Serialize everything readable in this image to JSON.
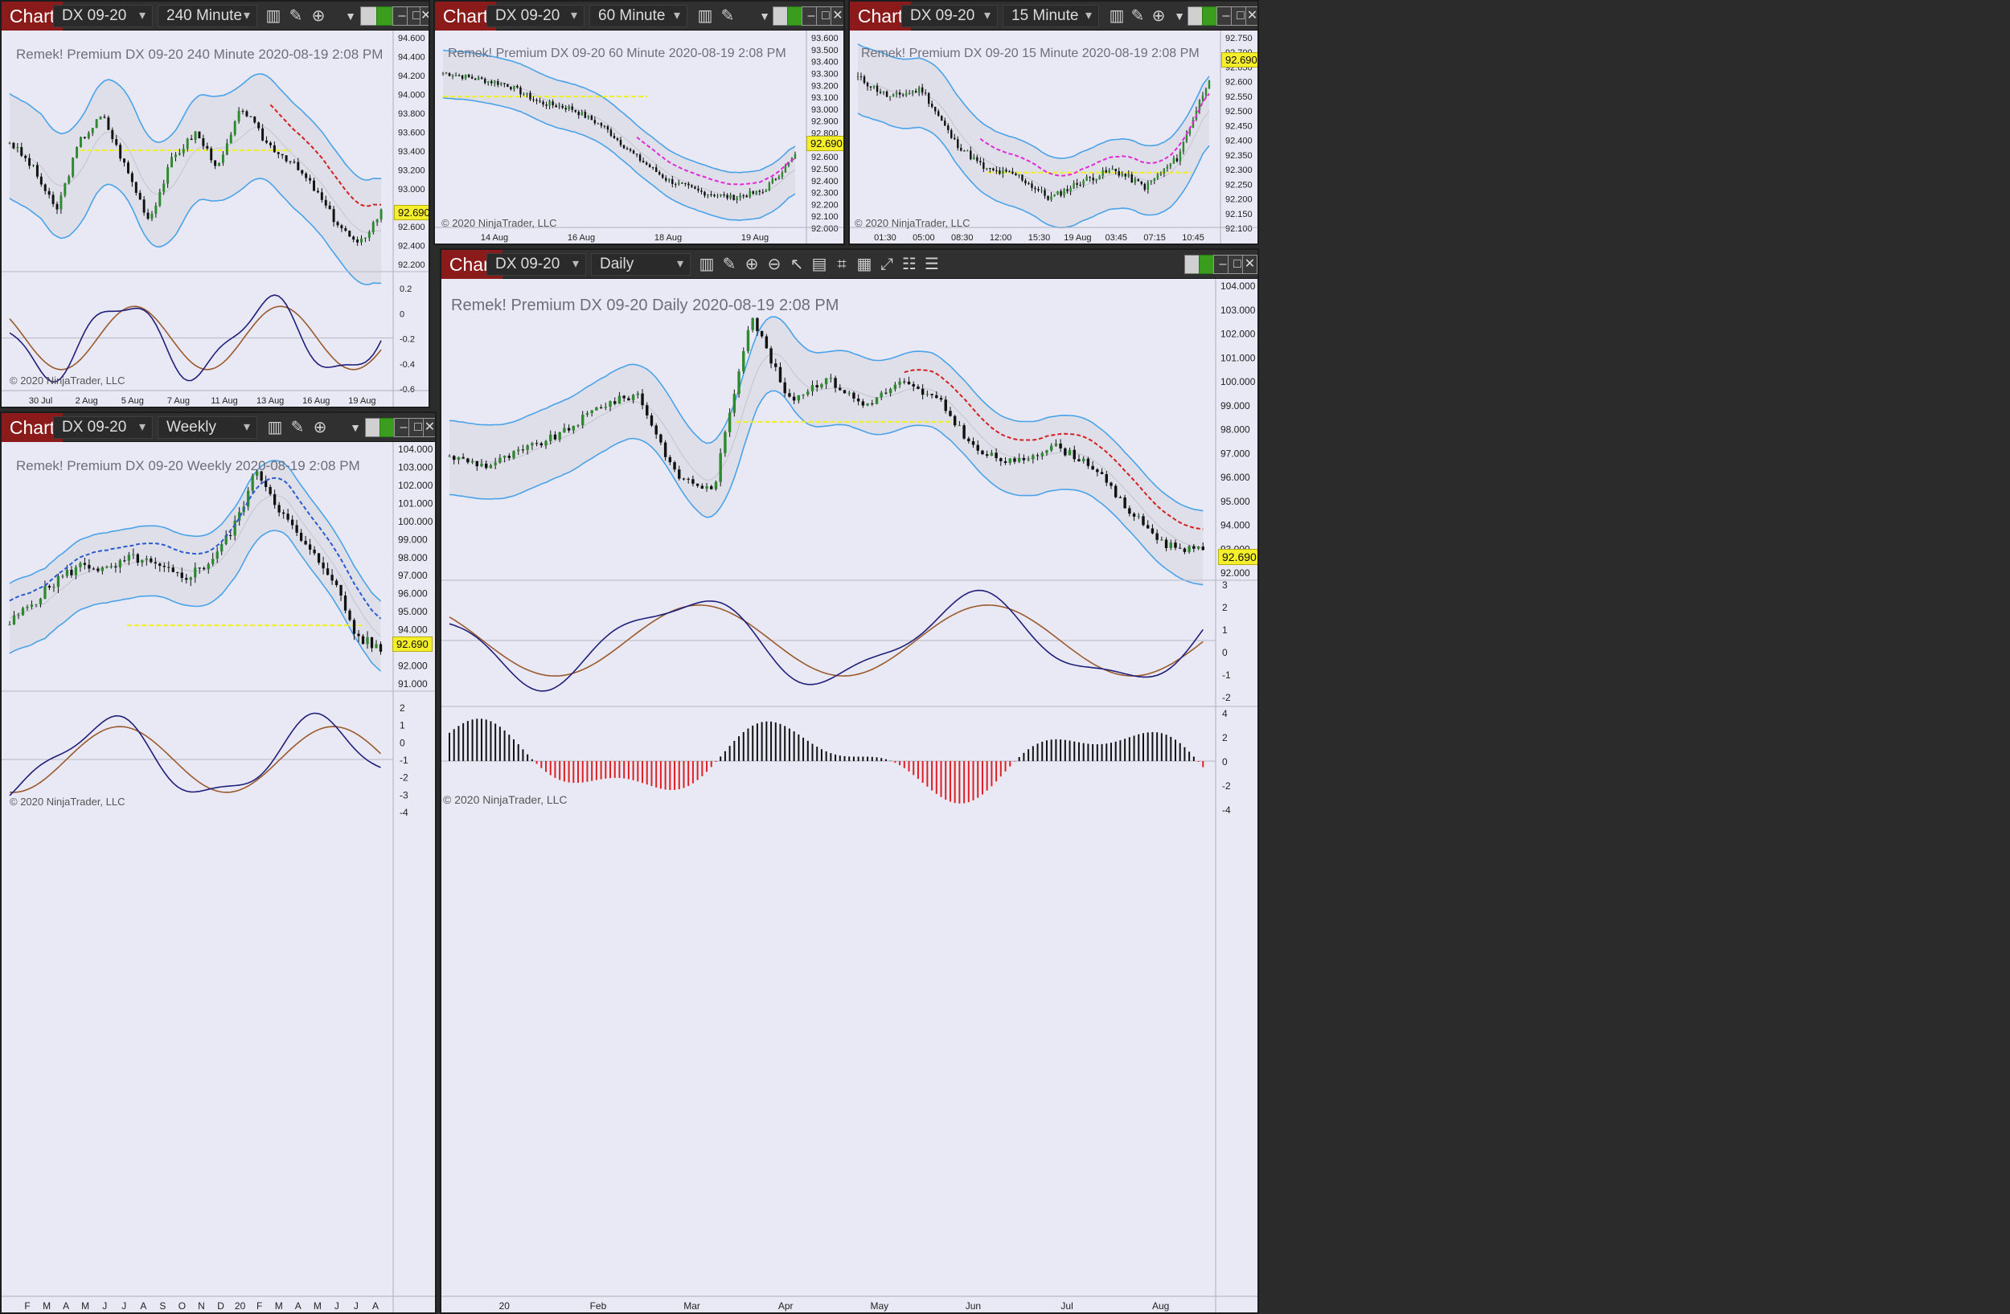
{
  "colors": {
    "chart_bg": "#e9e9f6",
    "toolbar": "#303030",
    "chart_button": "#8b1a1a",
    "band": "#4aa3e8",
    "bull": "#2e8a2e",
    "bear": "#111111",
    "macd": "#1f1f7a",
    "signal": "#9a5a2c",
    "hist_up": "#111111",
    "hist_down": "#e02020",
    "red_trend": "#d42020",
    "magenta_trend": "#e02ad8",
    "support": "#f0f020",
    "badge": "#f5ee2a"
  },
  "common": {
    "chart_button": "Chart",
    "copyright": "© 2020 NinjaTrader, LLC",
    "price_badge": "92.690"
  },
  "windows": [
    {
      "id": "w240",
      "instrument": "DX 09-20",
      "interval": "240 Minute",
      "title": "Remek!  Premium  DX 09-20  240 Minute  2020-08-19 2:08 PM",
      "price_ticks": [
        "94.600",
        "94.400",
        "94.200",
        "94.000",
        "93.800",
        "93.600",
        "93.400",
        "93.200",
        "93.000",
        "92.800",
        "92.600",
        "92.400",
        "92.200"
      ],
      "osc_ticks": [
        "0.2",
        "0",
        "-0.2",
        "-0.4",
        "-0.6"
      ],
      "time_labels": [
        "30 Jul",
        "2 Aug",
        "5 Aug",
        "7 Aug",
        "11 Aug",
        "13 Aug",
        "16 Aug",
        "19 Aug"
      ]
    },
    {
      "id": "w60",
      "instrument": "DX 09-20",
      "interval": "60 Minute",
      "title": "Remek!  Premium  DX 09-20  60 Minute  2020-08-19 2:08 PM",
      "price_ticks": [
        "93.600",
        "93.500",
        "93.400",
        "93.300",
        "93.200",
        "93.100",
        "93.000",
        "92.900",
        "92.800",
        "92.700",
        "92.600",
        "92.500",
        "92.400",
        "92.300",
        "92.200",
        "92.100",
        "92.000"
      ],
      "time_labels": [
        "14 Aug",
        "16 Aug",
        "18 Aug",
        "19 Aug"
      ]
    },
    {
      "id": "w15",
      "instrument": "DX 09-20",
      "interval": "15 Minute",
      "title": "Remek!  Premium  DX 09-20  15 Minute  2020-08-19 2:08 PM",
      "price_ticks": [
        "92.750",
        "92.700",
        "92.650",
        "92.600",
        "92.550",
        "92.500",
        "92.450",
        "92.400",
        "92.350",
        "92.300",
        "92.250",
        "92.200",
        "92.150",
        "92.100"
      ],
      "time_labels": [
        "01:30",
        "05:00",
        "08:30",
        "12:00",
        "15:30",
        "19 Aug",
        "03:45",
        "07:15",
        "10:45"
      ]
    },
    {
      "id": "wW",
      "instrument": "DX 09-20",
      "interval": "Weekly",
      "title": "Remek!  Premium  DX 09-20  Weekly  2020-08-19 2:08 PM",
      "price_ticks": [
        "104.000",
        "103.000",
        "102.000",
        "101.000",
        "100.000",
        "99.000",
        "98.000",
        "97.000",
        "96.000",
        "95.000",
        "94.000",
        "93.000",
        "92.000",
        "91.000"
      ],
      "osc_ticks": [
        "2",
        "1",
        "0",
        "-1",
        "-2",
        "-3",
        "-4"
      ],
      "time_labels": [
        "F",
        "M",
        "A",
        "M",
        "J",
        "J",
        "A",
        "S",
        "O",
        "N",
        "D",
        "20",
        "F",
        "M",
        "A",
        "M",
        "J",
        "J",
        "A"
      ]
    },
    {
      "id": "wD",
      "instrument": "DX 09-20",
      "interval": "Daily",
      "title": "Remek!  Premium  DX 09-20  Daily  2020-08-19 2:08 PM",
      "price_ticks": [
        "104.000",
        "103.000",
        "102.000",
        "101.000",
        "100.000",
        "99.000",
        "98.000",
        "97.000",
        "96.000",
        "95.000",
        "94.000",
        "93.000",
        "92.000"
      ],
      "osc_ticks": [
        "3",
        "2",
        "1",
        "0",
        "-1",
        "-2"
      ],
      "hist_ticks": [
        "4",
        "2",
        "0",
        "-2",
        "-4"
      ],
      "time_labels": [
        "20",
        "Feb",
        "Mar",
        "Apr",
        "May",
        "Jun",
        "Jul",
        "Aug"
      ]
    }
  ],
  "icons": [
    "bar-chart-icon",
    "pencil-icon",
    "zoom-in-icon",
    "zoom-out-icon",
    "pointer-icon",
    "data-box-icon",
    "strategy-icon",
    "indicator-icon",
    "template-icon",
    "properties-icon",
    "list-icon",
    "dropdown-arrow-icon",
    "minimize-icon",
    "maximize-icon",
    "close-icon"
  ]
}
